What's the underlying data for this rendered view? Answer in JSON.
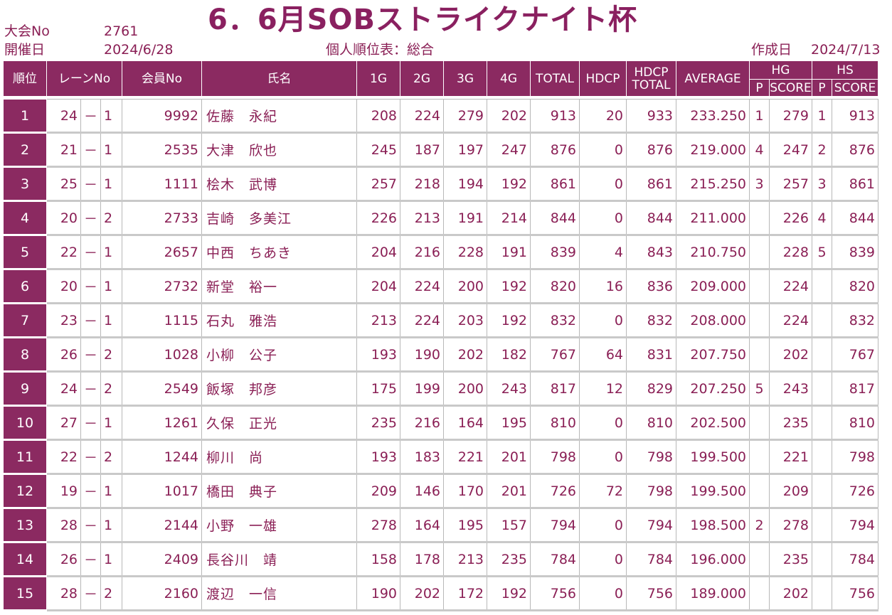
{
  "header": {
    "tournament_no_label": "大会No",
    "tournament_no": "2761",
    "date_label": "開催日",
    "date": "2024/6/28",
    "title": "6．6月SOBストライクナイト杯",
    "report_name": "個人順位表：総合",
    "created_label": "作成日",
    "created_date": "2024/7/13"
  },
  "columns": {
    "rank": "順位",
    "lane": "レーンNo",
    "member": "会員No",
    "name": "氏名",
    "g1": "1G",
    "g2": "2G",
    "g3": "3G",
    "g4": "4G",
    "total": "TOTAL",
    "hdcp": "HDCP",
    "hdcp_total_1": "HDCP",
    "hdcp_total_2": "TOTAL",
    "average": "AVERAGE",
    "hg": "HG",
    "hs": "HS",
    "p": "P",
    "score": "SCORE"
  },
  "rows": [
    {
      "rank": "1",
      "lane": "24",
      "sep": "－",
      "sub": "1",
      "member": "9992",
      "name": "佐藤　永紀",
      "g1": "208",
      "g2": "224",
      "g3": "279",
      "g4": "202",
      "total": "913",
      "hdcp": "20",
      "hdcp_total": "933",
      "average": "233.250",
      "hg_p": "1",
      "hg_score": "279",
      "hs_p": "1",
      "hs_score": "913"
    },
    {
      "rank": "2",
      "lane": "21",
      "sep": "－",
      "sub": "1",
      "member": "2535",
      "name": "大津　欣也",
      "g1": "245",
      "g2": "187",
      "g3": "197",
      "g4": "247",
      "total": "876",
      "hdcp": "0",
      "hdcp_total": "876",
      "average": "219.000",
      "hg_p": "4",
      "hg_score": "247",
      "hs_p": "2",
      "hs_score": "876"
    },
    {
      "rank": "3",
      "lane": "25",
      "sep": "－",
      "sub": "1",
      "member": "1111",
      "name": "桧木　武博",
      "g1": "257",
      "g2": "218",
      "g3": "194",
      "g4": "192",
      "total": "861",
      "hdcp": "0",
      "hdcp_total": "861",
      "average": "215.250",
      "hg_p": "3",
      "hg_score": "257",
      "hs_p": "3",
      "hs_score": "861"
    },
    {
      "rank": "4",
      "lane": "20",
      "sep": "－",
      "sub": "2",
      "member": "2733",
      "name": "吉崎　多美江",
      "g1": "226",
      "g2": "213",
      "g3": "191",
      "g4": "214",
      "total": "844",
      "hdcp": "0",
      "hdcp_total": "844",
      "average": "211.000",
      "hg_p": "",
      "hg_score": "226",
      "hs_p": "4",
      "hs_score": "844"
    },
    {
      "rank": "5",
      "lane": "22",
      "sep": "－",
      "sub": "1",
      "member": "2657",
      "name": "中西　ちあき",
      "g1": "204",
      "g2": "216",
      "g3": "228",
      "g4": "191",
      "total": "839",
      "hdcp": "4",
      "hdcp_total": "843",
      "average": "210.750",
      "hg_p": "",
      "hg_score": "228",
      "hs_p": "5",
      "hs_score": "839"
    },
    {
      "rank": "6",
      "lane": "20",
      "sep": "－",
      "sub": "1",
      "member": "2732",
      "name": "新堂　裕一",
      "g1": "204",
      "g2": "224",
      "g3": "200",
      "g4": "192",
      "total": "820",
      "hdcp": "16",
      "hdcp_total": "836",
      "average": "209.000",
      "hg_p": "",
      "hg_score": "224",
      "hs_p": "",
      "hs_score": "820"
    },
    {
      "rank": "7",
      "lane": "23",
      "sep": "－",
      "sub": "1",
      "member": "1115",
      "name": "石丸　雅浩",
      "g1": "213",
      "g2": "224",
      "g3": "203",
      "g4": "192",
      "total": "832",
      "hdcp": "0",
      "hdcp_total": "832",
      "average": "208.000",
      "hg_p": "",
      "hg_score": "224",
      "hs_p": "",
      "hs_score": "832"
    },
    {
      "rank": "8",
      "lane": "26",
      "sep": "－",
      "sub": "2",
      "member": "1028",
      "name": "小柳　公子",
      "g1": "193",
      "g2": "190",
      "g3": "202",
      "g4": "182",
      "total": "767",
      "hdcp": "64",
      "hdcp_total": "831",
      "average": "207.750",
      "hg_p": "",
      "hg_score": "202",
      "hs_p": "",
      "hs_score": "767"
    },
    {
      "rank": "9",
      "lane": "24",
      "sep": "－",
      "sub": "2",
      "member": "2549",
      "name": "飯塚　邦彦",
      "g1": "175",
      "g2": "199",
      "g3": "200",
      "g4": "243",
      "total": "817",
      "hdcp": "12",
      "hdcp_total": "829",
      "average": "207.250",
      "hg_p": "5",
      "hg_score": "243",
      "hs_p": "",
      "hs_score": "817"
    },
    {
      "rank": "10",
      "lane": "27",
      "sep": "－",
      "sub": "1",
      "member": "1261",
      "name": "久保　正光",
      "g1": "235",
      "g2": "216",
      "g3": "164",
      "g4": "195",
      "total": "810",
      "hdcp": "0",
      "hdcp_total": "810",
      "average": "202.500",
      "hg_p": "",
      "hg_score": "235",
      "hs_p": "",
      "hs_score": "810"
    },
    {
      "rank": "11",
      "lane": "22",
      "sep": "－",
      "sub": "2",
      "member": "1244",
      "name": "柳川　尚",
      "g1": "193",
      "g2": "183",
      "g3": "221",
      "g4": "201",
      "total": "798",
      "hdcp": "0",
      "hdcp_total": "798",
      "average": "199.500",
      "hg_p": "",
      "hg_score": "221",
      "hs_p": "",
      "hs_score": "798"
    },
    {
      "rank": "12",
      "lane": "19",
      "sep": "－",
      "sub": "1",
      "member": "1017",
      "name": "橋田　典子",
      "g1": "209",
      "g2": "146",
      "g3": "170",
      "g4": "201",
      "total": "726",
      "hdcp": "72",
      "hdcp_total": "798",
      "average": "199.500",
      "hg_p": "",
      "hg_score": "209",
      "hs_p": "",
      "hs_score": "726"
    },
    {
      "rank": "13",
      "lane": "28",
      "sep": "－",
      "sub": "1",
      "member": "2144",
      "name": "小野　一雄",
      "g1": "278",
      "g2": "164",
      "g3": "195",
      "g4": "157",
      "total": "794",
      "hdcp": "0",
      "hdcp_total": "794",
      "average": "198.500",
      "hg_p": "2",
      "hg_score": "278",
      "hs_p": "",
      "hs_score": "794"
    },
    {
      "rank": "14",
      "lane": "26",
      "sep": "－",
      "sub": "1",
      "member": "2409",
      "name": "長谷川　靖",
      "g1": "158",
      "g2": "178",
      "g3": "213",
      "g4": "235",
      "total": "784",
      "hdcp": "0",
      "hdcp_total": "784",
      "average": "196.000",
      "hg_p": "",
      "hg_score": "235",
      "hs_p": "",
      "hs_score": "784"
    },
    {
      "rank": "15",
      "lane": "28",
      "sep": "－",
      "sub": "2",
      "member": "2160",
      "name": "渡辺　一信",
      "g1": "190",
      "g2": "202",
      "g3": "172",
      "g4": "192",
      "total": "756",
      "hdcp": "0",
      "hdcp_total": "756",
      "average": "189.000",
      "hg_p": "",
      "hg_score": "202",
      "hs_p": "",
      "hs_score": "756"
    }
  ]
}
